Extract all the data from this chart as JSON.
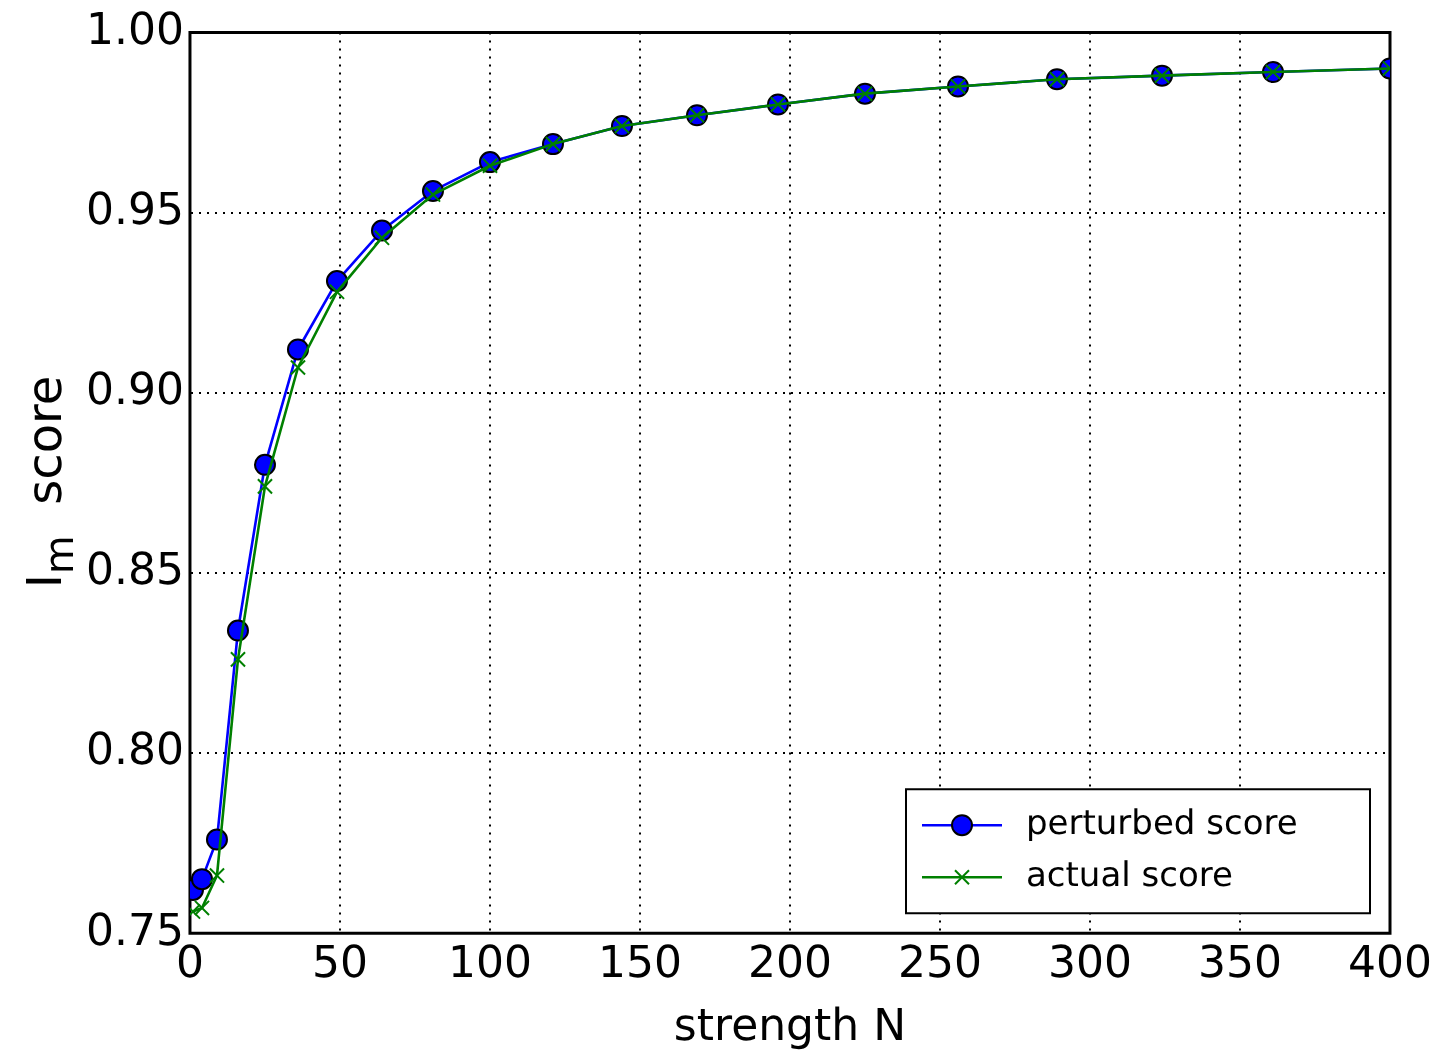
{
  "chart_data": {
    "type": "line",
    "xlabel": "strength N",
    "ylabel": "I$_{m}$  score",
    "x": [
      1,
      4,
      9,
      16,
      25,
      36,
      49,
      64,
      81,
      100,
      121,
      144,
      169,
      196,
      225,
      256,
      289,
      324,
      361,
      400
    ],
    "series": [
      {
        "name": "perturbed score",
        "color": "#0000ff",
        "marker": "circle",
        "values": [
          0.762,
          0.765,
          0.776,
          0.834,
          0.88,
          0.912,
          0.931,
          0.945,
          0.956,
          0.964,
          0.969,
          0.974,
          0.977,
          0.98,
          0.983,
          0.985,
          0.987,
          0.988,
          0.989,
          0.99
        ]
      },
      {
        "name": "actual score",
        "color": "#008000",
        "marker": "cross",
        "values": [
          0.756,
          0.757,
          0.766,
          0.826,
          0.874,
          0.907,
          0.928,
          0.943,
          0.955,
          0.963,
          0.969,
          0.974,
          0.977,
          0.98,
          0.983,
          0.985,
          0.987,
          0.988,
          0.989,
          0.99
        ]
      }
    ],
    "xlim": [
      0,
      400
    ],
    "xticks": [
      0,
      50,
      100,
      150,
      200,
      250,
      300,
      350,
      400
    ],
    "ylim": [
      0.75,
      1.0
    ],
    "yticks": [
      {
        "value": 0.75,
        "label": "0.75"
      },
      {
        "value": 0.8,
        "label": "0.80"
      },
      {
        "value": 0.85,
        "label": "0.85"
      },
      {
        "value": 0.9,
        "label": "0.90"
      },
      {
        "value": 0.95,
        "label": "0.95"
      },
      {
        "value": 1.0,
        "label": "1.00"
      }
    ],
    "grid": true,
    "legend": "bottom right",
    "line_style": "solid"
  }
}
